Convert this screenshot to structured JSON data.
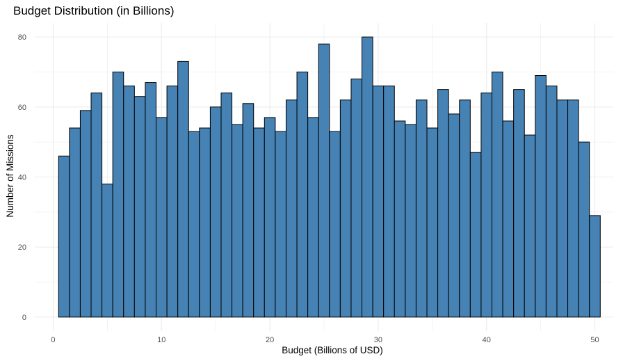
{
  "chart_data": {
    "type": "bar",
    "subtype": "histogram",
    "title": "Budget Distribution (in Billions)",
    "xlabel": "Budget (Billions of USD)",
    "ylabel": "Number of Missions",
    "xlim": [
      -1.7,
      51.7
    ],
    "ylim": [
      -4,
      84
    ],
    "x_ticks": [
      0,
      10,
      20,
      30,
      40,
      50
    ],
    "y_ticks": [
      0,
      20,
      40,
      60,
      80
    ],
    "bin_width": 1,
    "bin_centers": [
      1,
      2,
      3,
      4,
      5,
      6,
      7,
      8,
      9,
      10,
      11,
      12,
      13,
      14,
      15,
      16,
      17,
      18,
      19,
      20,
      21,
      22,
      23,
      24,
      25,
      26,
      27,
      28,
      29,
      30,
      31,
      32,
      33,
      34,
      35,
      36,
      37,
      38,
      39,
      40,
      41,
      42,
      43,
      44,
      45,
      46,
      47,
      48,
      49,
      50
    ],
    "values": [
      46,
      54,
      59,
      64,
      38,
      70,
      66,
      63,
      67,
      57,
      66,
      73,
      53,
      54,
      60,
      64,
      55,
      61,
      54,
      57,
      53,
      62,
      70,
      57,
      78,
      53,
      62,
      68,
      80,
      66,
      66,
      56,
      55,
      62,
      54,
      65,
      58,
      62,
      47,
      64,
      70,
      56,
      65,
      52,
      69,
      66,
      62,
      62,
      50,
      29
    ],
    "grid": true,
    "legend": "none",
    "colors": {
      "bar_fill": "#4682b4",
      "bar_stroke": "#000000",
      "grid": "#ebebeb",
      "tick_text": "#4d4d4d"
    }
  }
}
